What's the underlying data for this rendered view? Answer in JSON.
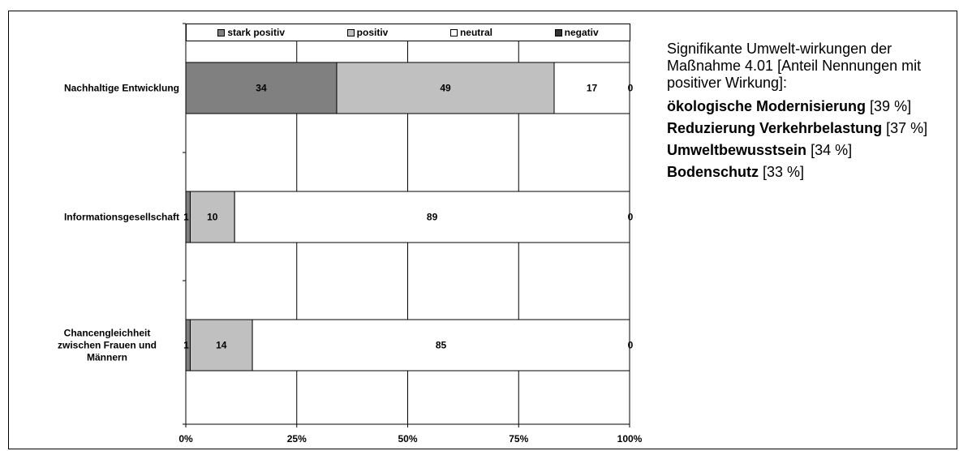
{
  "chart_data": {
    "type": "bar",
    "orientation": "horizontal",
    "stacked": true,
    "percent": true,
    "categories": [
      "Nachhaltige Entwicklung",
      "Informationsgesellschaft",
      "Chancengleichheit zwischen Frauen und Männern"
    ],
    "category_lines": [
      [
        "Nachhaltige Entwicklung"
      ],
      [
        "Informationsgesellschaft"
      ],
      [
        "Chancengleichheit",
        "zwischen Frauen und",
        "Männern"
      ]
    ],
    "series": [
      {
        "name": "stark positiv",
        "color": "#808080",
        "values": [
          34,
          1,
          1
        ]
      },
      {
        "name": "positiv",
        "color": "#c0c0c0",
        "values": [
          49,
          10,
          14
        ]
      },
      {
        "name": "neutral",
        "color": "#ffffff",
        "values": [
          17,
          89,
          85
        ]
      },
      {
        "name": "negativ",
        "color": "#333333",
        "values": [
          0,
          0,
          0
        ]
      }
    ],
    "xlim": [
      0,
      100
    ],
    "xticks": [
      "0%",
      "25%",
      "50%",
      "75%",
      "100%"
    ],
    "grid": true,
    "legend": "top"
  },
  "sidebar": {
    "intro": "Signifikante Umwelt-wirkungen der Maßnahme 4.01 [Anteil Nennungen mit positiver Wirkung]:",
    "items": [
      {
        "name": "ökologische Modernisierung",
        "value": "[39 %]"
      },
      {
        "name": "Reduzierung Verkehrbelastung",
        "value": "[37 %]"
      },
      {
        "name": "Umweltbewusstsein",
        "value": "[34 %]"
      },
      {
        "name": "Bodenschutz",
        "value": "[33 %]"
      }
    ]
  }
}
